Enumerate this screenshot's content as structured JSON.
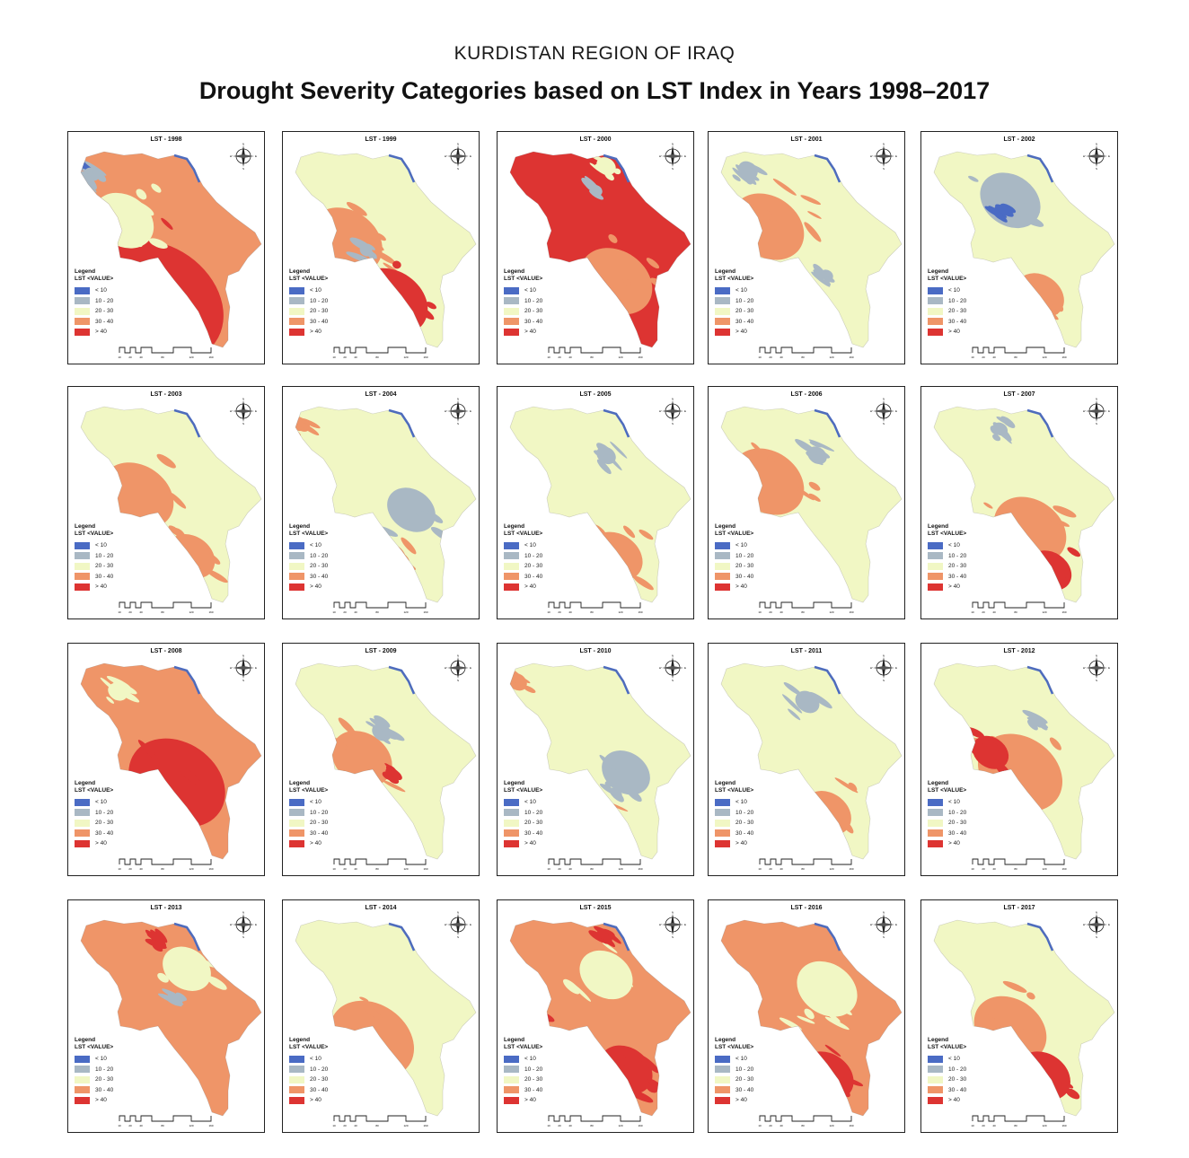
{
  "header": {
    "subtitle": "KURDISTAN REGION OF IRAQ",
    "title": "Drought Severity Categories based on LST Index in Years 1998–2017"
  },
  "legend": {
    "title": "Legend",
    "subtitle": "LST <VALUE>",
    "classes": [
      {
        "label": "< 10",
        "color": "#4a6bc4"
      },
      {
        "label": "10 - 20",
        "color": "#a9b8c4"
      },
      {
        "label": "20 - 30",
        "color": "#f1f7c4"
      },
      {
        "label": "30 - 40",
        "color": "#ef9568"
      },
      {
        "label": "> 40",
        "color": "#dd3432"
      }
    ]
  },
  "scale": {
    "ticks": [
      "10",
      "20",
      "40",
      "80",
      "120",
      "160"
    ]
  },
  "compass": {
    "labels": [
      "N",
      "S",
      "E",
      "W"
    ]
  },
  "maps": [
    {
      "label": "LST - 1998",
      "year": 1998,
      "base": "#ef9568",
      "patches": [
        [
          "#dd3432",
          0.45,
          0.75,
          0.55
        ],
        [
          "#4a6bc4",
          0.05,
          0.07,
          0.06
        ],
        [
          "#a9b8c4",
          0.12,
          0.12,
          0.06
        ],
        [
          "#f1f7c4",
          0.28,
          0.35,
          0.25
        ]
      ]
    },
    {
      "label": "LST - 1999",
      "year": 1999,
      "base": "#f1f7c4",
      "patches": [
        [
          "#ef9568",
          0.32,
          0.45,
          0.3
        ],
        [
          "#dd3432",
          0.55,
          0.75,
          0.3
        ],
        [
          "#a9b8c4",
          0.42,
          0.5,
          0.05
        ]
      ]
    },
    {
      "label": "LST - 2000",
      "year": 2000,
      "base": "#dd3432",
      "patches": [
        [
          "#ef9568",
          0.6,
          0.65,
          0.3
        ],
        [
          "#f1f7c4",
          0.55,
          0.08,
          0.08
        ],
        [
          "#a9b8c4",
          0.5,
          0.2,
          0.05
        ]
      ]
    },
    {
      "label": "LST - 2001",
      "year": 2001,
      "base": "#f1f7c4",
      "patches": [
        [
          "#ef9568",
          0.3,
          0.38,
          0.3
        ],
        [
          "#a9b8c4",
          0.2,
          0.1,
          0.08
        ],
        [
          "#a9b8c4",
          0.6,
          0.62,
          0.05
        ]
      ]
    },
    {
      "label": "LST - 2002",
      "year": 2002,
      "base": "#f1f7c4",
      "patches": [
        [
          "#a9b8c4",
          0.45,
          0.25,
          0.25
        ],
        [
          "#ef9568",
          0.6,
          0.72,
          0.2
        ],
        [
          "#4a6bc4",
          0.4,
          0.3,
          0.05
        ]
      ]
    },
    {
      "label": "LST - 2003",
      "year": 2003,
      "base": "#f1f7c4",
      "patches": [
        [
          "#ef9568",
          0.35,
          0.45,
          0.3
        ],
        [
          "#ef9568",
          0.62,
          0.75,
          0.2
        ]
      ]
    },
    {
      "label": "LST - 2004",
      "year": 2004,
      "base": "#f1f7c4",
      "patches": [
        [
          "#a9b8c4",
          0.65,
          0.52,
          0.2
        ],
        [
          "#ef9568",
          0.1,
          0.1,
          0.06
        ],
        [
          "#ef9568",
          0.55,
          0.75,
          0.12
        ]
      ]
    },
    {
      "label": "LST - 2005",
      "year": 2005,
      "base": "#f1f7c4",
      "patches": [
        [
          "#ef9568",
          0.6,
          0.75,
          0.22
        ],
        [
          "#a9b8c4",
          0.55,
          0.25,
          0.08
        ]
      ]
    },
    {
      "label": "LST - 2006",
      "year": 2006,
      "base": "#f1f7c4",
      "patches": [
        [
          "#ef9568",
          0.3,
          0.38,
          0.3
        ],
        [
          "#a9b8c4",
          0.55,
          0.25,
          0.08
        ]
      ]
    },
    {
      "label": "LST - 2007",
      "year": 2007,
      "base": "#f1f7c4",
      "patches": [
        [
          "#ef9568",
          0.55,
          0.62,
          0.3
        ],
        [
          "#dd3432",
          0.65,
          0.82,
          0.18
        ],
        [
          "#a9b8c4",
          0.4,
          0.12,
          0.06
        ]
      ]
    },
    {
      "label": "LST - 2008",
      "year": 2008,
      "base": "#ef9568",
      "patches": [
        [
          "#dd3432",
          0.55,
          0.6,
          0.4
        ],
        [
          "#f1f7c4",
          0.25,
          0.15,
          0.08
        ]
      ]
    },
    {
      "label": "LST - 2009",
      "year": 2009,
      "base": "#f1f7c4",
      "patches": [
        [
          "#ef9568",
          0.4,
          0.48,
          0.25
        ],
        [
          "#dd3432",
          0.55,
          0.55,
          0.05
        ],
        [
          "#a9b8c4",
          0.5,
          0.35,
          0.08
        ]
      ]
    },
    {
      "label": "LST - 2010",
      "year": 2010,
      "base": "#f1f7c4",
      "patches": [
        [
          "#a9b8c4",
          0.65,
          0.55,
          0.2
        ],
        [
          "#ef9568",
          0.1,
          0.1,
          0.08
        ],
        [
          "#ef9568",
          0.55,
          0.75,
          0.1
        ]
      ]
    },
    {
      "label": "LST - 2011",
      "year": 2011,
      "base": "#f1f7c4",
      "patches": [
        [
          "#ef9568",
          0.6,
          0.75,
          0.2
        ],
        [
          "#a9b8c4",
          0.5,
          0.2,
          0.1
        ]
      ]
    },
    {
      "label": "LST - 2012",
      "year": 2012,
      "base": "#f1f7c4",
      "patches": [
        [
          "#ef9568",
          0.5,
          0.55,
          0.35
        ],
        [
          "#dd3432",
          0.35,
          0.45,
          0.15
        ],
        [
          "#a9b8c4",
          0.6,
          0.3,
          0.05
        ]
      ]
    },
    {
      "label": "LST - 2013",
      "year": 2013,
      "base": "#ef9568",
      "patches": [
        [
          "#f1f7c4",
          0.6,
          0.25,
          0.2
        ],
        [
          "#dd3432",
          0.45,
          0.12,
          0.05
        ],
        [
          "#a9b8c4",
          0.55,
          0.4,
          0.05
        ]
      ]
    },
    {
      "label": "LST - 2014",
      "year": 2014,
      "base": "#f1f7c4",
      "patches": [
        [
          "#ef9568",
          0.45,
          0.6,
          0.35
        ]
      ]
    },
    {
      "label": "LST - 2015",
      "year": 2015,
      "base": "#ef9568",
      "patches": [
        [
          "#f1f7c4",
          0.55,
          0.28,
          0.22
        ],
        [
          "#dd3432",
          0.65,
          0.75,
          0.22
        ],
        [
          "#dd3432",
          0.2,
          0.5,
          0.06
        ],
        [
          "#dd3432",
          0.55,
          0.1,
          0.05
        ]
      ]
    },
    {
      "label": "LST - 2016",
      "year": 2016,
      "base": "#ef9568",
      "patches": [
        [
          "#f1f7c4",
          0.6,
          0.35,
          0.25
        ],
        [
          "#dd3432",
          0.6,
          0.78,
          0.22
        ]
      ]
    },
    {
      "label": "LST - 2017",
      "year": 2017,
      "base": "#f1f7c4",
      "patches": [
        [
          "#ef9568",
          0.45,
          0.55,
          0.3
        ],
        [
          "#dd3432",
          0.62,
          0.78,
          0.22
        ]
      ]
    }
  ]
}
